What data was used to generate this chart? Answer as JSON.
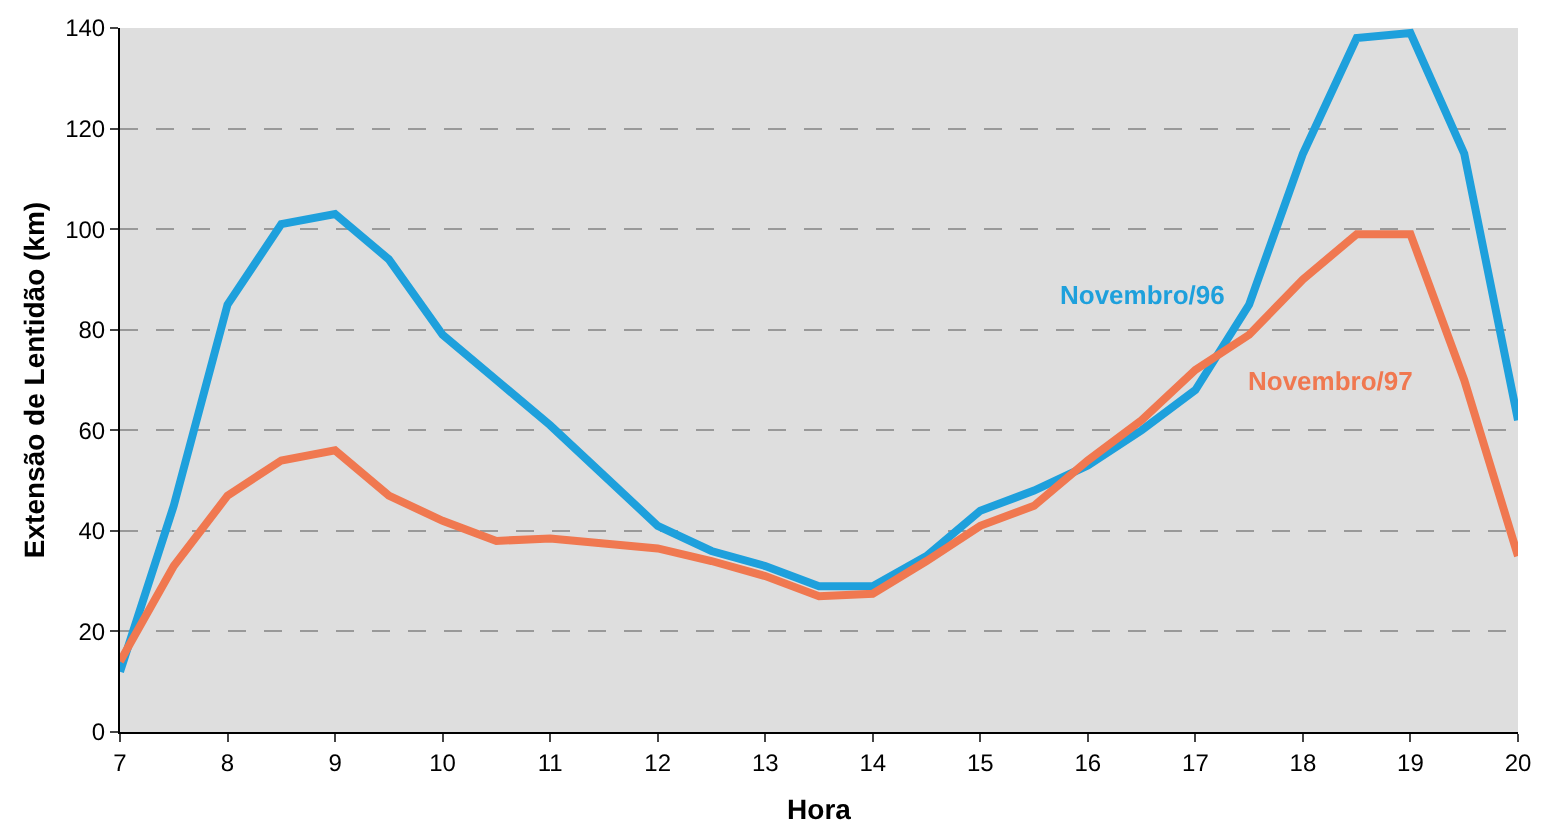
{
  "chart_data": {
    "type": "line",
    "xlabel": "Hora",
    "ylabel": "Extensão de Lentidão (km)",
    "x": [
      7,
      7.5,
      8,
      8.5,
      9,
      9.5,
      10,
      10.5,
      11,
      11.5,
      12,
      12.5,
      13,
      13.5,
      14,
      14.5,
      15,
      15.5,
      16,
      16.5,
      17,
      17.5,
      18,
      18.5,
      19,
      19.5,
      20
    ],
    "series": [
      {
        "name": "Novembro/96",
        "color": "#1ea0dc",
        "values": [
          12,
          45,
          85,
          101,
          103,
          94,
          79,
          70,
          61,
          51,
          41,
          36,
          33,
          29,
          29,
          35,
          44,
          48,
          53,
          60,
          68,
          85,
          115,
          138,
          139,
          115,
          62
        ]
      },
      {
        "name": "Novembro/97",
        "color": "#f07850",
        "values": [
          14,
          33,
          47,
          54,
          56,
          47,
          42,
          38,
          38.5,
          37.5,
          36.5,
          34,
          31,
          27,
          27.5,
          34,
          41,
          45,
          54,
          62,
          72,
          79,
          90,
          99,
          99,
          70,
          35
        ]
      }
    ],
    "xlim": [
      7,
      20
    ],
    "xticks": [
      7,
      8,
      9,
      10,
      11,
      12,
      13,
      14,
      15,
      16,
      17,
      18,
      19,
      20
    ],
    "ylim": [
      0,
      140
    ],
    "yticks": [
      0,
      20,
      40,
      60,
      80,
      100,
      120,
      140
    ],
    "grid": "y",
    "legend": false,
    "line_style": "solid",
    "marker": "none"
  }
}
